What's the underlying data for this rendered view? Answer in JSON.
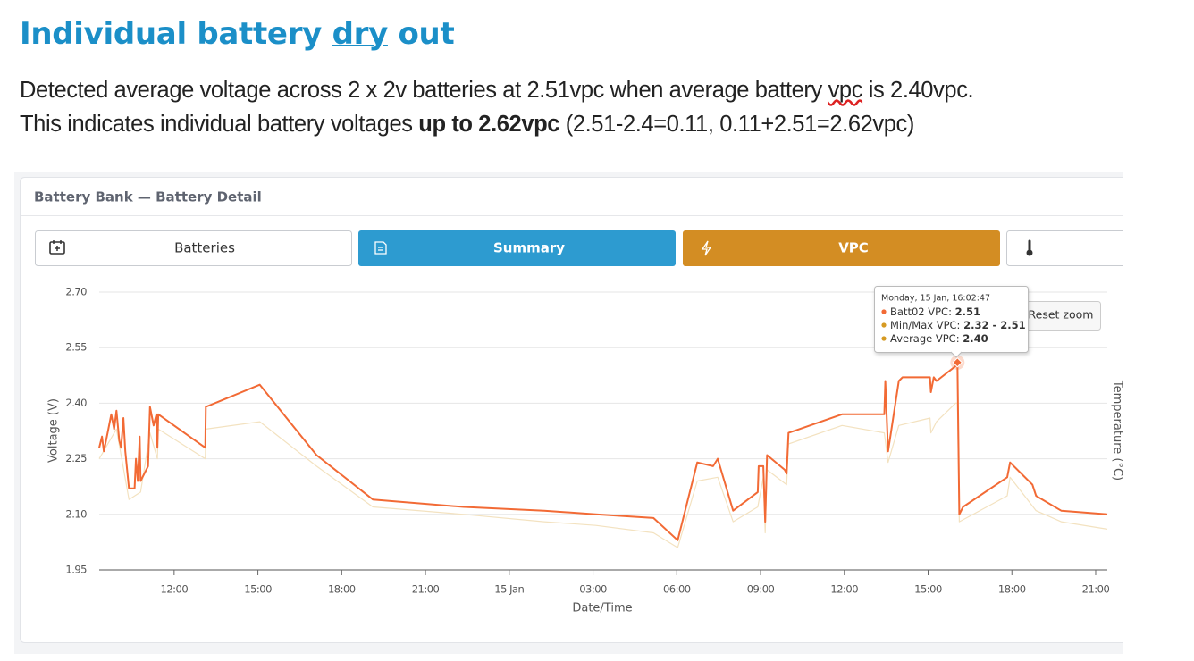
{
  "heading": [
    "Individual battery ",
    "dry",
    " out"
  ],
  "paragraph": {
    "line1": [
      "Detected average voltage across 2 x 2v batteries at 2.51vpc when average battery ",
      "vpc",
      " is 2.40vpc."
    ],
    "line2": [
      "This indicates individual battery voltages ",
      "up to 2.62vpc",
      " (2.51-2.4=0.11, 0.11+2.51=2.62vpc)"
    ]
  },
  "chart_data": {
    "type": "line",
    "title": "Battery Bank — Battery Detail",
    "tabs": [
      "Batteries",
      "Summary",
      "VPC"
    ],
    "reset_zoom": "Reset zoom",
    "x_label": "Date/Time",
    "y_label": "Voltage (V)",
    "y2_label": "Temperature (°C)",
    "grid": true,
    "ylim": [
      1.95,
      2.7
    ],
    "yticks": [
      1.95,
      {
        "value": 2.1,
        "label": "2.10"
      },
      2.25,
      {
        "value": 2.4,
        "label": "2.40"
      },
      2.55,
      {
        "value": 2.7,
        "label": "2.70"
      }
    ],
    "xlim": [
      "14 Jan 09:19",
      "15 Jan 21:25"
    ],
    "xticks": [
      {
        "value": "14 Jan 12:00",
        "label": "12:00"
      },
      {
        "value": "14 Jan 15:00",
        "label": "15:00"
      },
      {
        "value": "14 Jan 18:00",
        "label": "18:00"
      },
      {
        "value": "14 Jan 21:00",
        "label": "21:00"
      },
      {
        "value": "15 Jan 00:00",
        "label": "15 Jan"
      },
      {
        "value": "15 Jan 03:00",
        "label": "03:00"
      },
      {
        "value": "15 Jan 06:00",
        "label": "06:00"
      },
      {
        "value": "15 Jan 09:00",
        "label": "09:00"
      },
      {
        "value": "15 Jan 12:00",
        "label": "12:00"
      },
      {
        "value": "15 Jan 15:00",
        "label": "15:00"
      },
      {
        "value": "15 Jan 18:00",
        "label": "18:00"
      },
      {
        "value": "15 Jan 21:00",
        "label": "21:00"
      }
    ],
    "series": [
      {
        "name": "Average VPC",
        "color": "#f3e2c0",
        "x": [
          "14 Jan 09:19",
          "14 Jan 09:56",
          "14 Jan 10:23",
          "14 Jan 10:48",
          "14 Jan 11:08",
          "14 Jan 11:24",
          "14 Jan 11:26",
          "14 Jan 13:07",
          "14 Jan 13:08",
          "14 Jan 15:04",
          "14 Jan 17:06",
          "14 Jan 19:07",
          "14 Jan 22:22",
          "15 Jan 01:15",
          "15 Jan 03:06",
          "15 Jan 05:10",
          "15 Jan 06:02",
          "15 Jan 06:44",
          "15 Jan 07:28",
          "15 Jan 08:01",
          "15 Jan 08:54",
          "15 Jan 09:06",
          "15 Jan 09:10",
          "15 Jan 09:14",
          "15 Jan 09:56",
          "15 Jan 10:00",
          "15 Jan 11:55",
          "15 Jan 13:26",
          "15 Jan 13:34",
          "15 Jan 13:57",
          "15 Jan 15:04",
          "15 Jan 15:06",
          "15 Jan 15:18",
          "15 Jan 15:59",
          "15 Jan 16:03",
          "15 Jan 16:07",
          "15 Jan 17:50",
          "15 Jan 17:56",
          "15 Jan 18:52",
          "15 Jan 19:46",
          "15 Jan 21:25"
        ],
        "values": [
          2.25,
          2.33,
          2.14,
          2.16,
          2.32,
          2.25,
          2.33,
          2.25,
          2.33,
          2.35,
          2.23,
          2.12,
          2.1,
          2.08,
          2.07,
          2.05,
          2.01,
          2.19,
          2.2,
          2.08,
          2.12,
          2.2,
          2.05,
          2.22,
          2.18,
          2.29,
          2.34,
          2.32,
          2.24,
          2.34,
          2.36,
          2.32,
          2.35,
          2.4,
          2.4,
          2.08,
          2.15,
          2.2,
          2.11,
          2.08,
          2.06
        ]
      },
      {
        "name": "Batt02 VPC",
        "color": "#f26a35",
        "x": [
          "14 Jan 09:19",
          "14 Jan 09:25",
          "14 Jan 09:29",
          "14 Jan 09:37",
          "14 Jan 09:45",
          "14 Jan 09:51",
          "14 Jan 09:56",
          "14 Jan 10:02",
          "14 Jan 10:06",
          "14 Jan 10:11",
          "14 Jan 10:15",
          "14 Jan 10:23",
          "14 Jan 10:35",
          "14 Jan 10:38",
          "14 Jan 10:42",
          "14 Jan 10:46",
          "14 Jan 10:48",
          "14 Jan 11:04",
          "14 Jan 11:08",
          "14 Jan 11:16",
          "14 Jan 11:22",
          "14 Jan 11:24",
          "14 Jan 11:26",
          "14 Jan 13:07",
          "14 Jan 13:08",
          "14 Jan 15:04",
          "14 Jan 17:06",
          "14 Jan 19:07",
          "14 Jan 22:22",
          "15 Jan 01:15",
          "15 Jan 03:06",
          "15 Jan 05:10",
          "15 Jan 06:02",
          "15 Jan 06:44",
          "15 Jan 07:18",
          "15 Jan 07:28",
          "15 Jan 08:01",
          "15 Jan 08:54",
          "15 Jan 08:56",
          "15 Jan 09:06",
          "15 Jan 09:10",
          "15 Jan 09:14",
          "15 Jan 09:52",
          "15 Jan 09:56",
          "15 Jan 10:00",
          "15 Jan 11:55",
          "15 Jan 13:26",
          "15 Jan 13:28",
          "15 Jan 13:34",
          "15 Jan 13:57",
          "15 Jan 14:05",
          "15 Jan 15:04",
          "15 Jan 15:06",
          "15 Jan 15:12",
          "15 Jan 15:18",
          "15 Jan 15:59",
          "15 Jan 16:03",
          "15 Jan 16:07",
          "15 Jan 16:15",
          "15 Jan 17:50",
          "15 Jan 17:56",
          "15 Jan 18:44",
          "15 Jan 18:52",
          "15 Jan 19:46",
          "15 Jan 21:25"
        ],
        "values": [
          2.28,
          2.31,
          2.27,
          2.32,
          2.37,
          2.33,
          2.38,
          2.3,
          2.28,
          2.36,
          2.27,
          2.17,
          2.17,
          2.25,
          2.19,
          2.31,
          2.19,
          2.23,
          2.39,
          2.34,
          2.37,
          2.28,
          2.37,
          2.28,
          2.39,
          2.45,
          2.26,
          2.14,
          2.12,
          2.11,
          2.1,
          2.09,
          2.03,
          2.24,
          2.23,
          2.25,
          2.11,
          2.16,
          2.23,
          2.23,
          2.08,
          2.26,
          2.22,
          2.21,
          2.32,
          2.37,
          2.37,
          2.46,
          2.27,
          2.46,
          2.47,
          2.47,
          2.43,
          2.47,
          2.46,
          2.5,
          2.51,
          2.1,
          2.12,
          2.2,
          2.24,
          2.18,
          2.15,
          2.11,
          2.1
        ]
      }
    ],
    "tooltip": {
      "title": "Monday, 15 Jan, 16:02:47",
      "items": [
        {
          "label": "Batt02 VPC: ",
          "value": "2.51"
        },
        {
          "label": "Min/Max VPC: ",
          "value": "2.32 - 2.51"
        },
        {
          "label": "Average VPC: ",
          "value": "2.40"
        }
      ]
    }
  }
}
